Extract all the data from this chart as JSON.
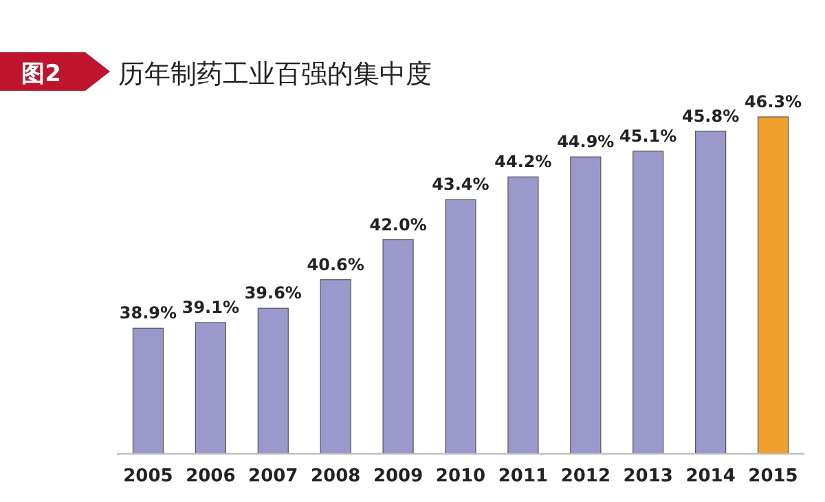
{
  "chart_data": {
    "type": "bar",
    "title": "历年制药工业百强的集中度",
    "annotations": [
      "图2"
    ],
    "categories": [
      "2005",
      "2006",
      "2007",
      "2008",
      "2009",
      "2010",
      "2011",
      "2012",
      "2013",
      "2014",
      "2015"
    ],
    "values": [
      38.9,
      39.1,
      39.6,
      40.6,
      42.0,
      43.4,
      44.2,
      44.9,
      45.1,
      45.8,
      46.3
    ],
    "value_labels": [
      "38.9%",
      "39.1%",
      "39.6%",
      "40.6%",
      "42.0%",
      "43.4%",
      "44.2%",
      "44.9%",
      "45.1%",
      "45.8%",
      "46.3%"
    ],
    "colors": [
      "#9b98cc",
      "#9b98cc",
      "#9b98cc",
      "#9b98cc",
      "#9b98cc",
      "#9b98cc",
      "#9b98cc",
      "#9b98cc",
      "#9b98cc",
      "#9b98cc",
      "#f0a02c"
    ],
    "ylim": [
      34.5,
      46.3
    ],
    "tick_labels": "x"
  }
}
